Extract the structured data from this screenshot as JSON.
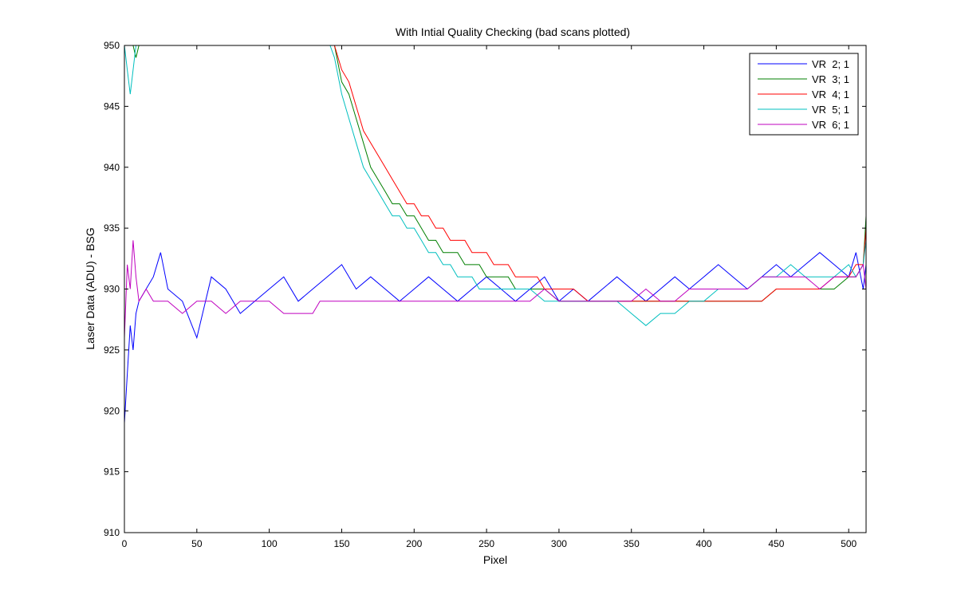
{
  "chart_data": {
    "type": "line",
    "title": "With Intial Quality Checking (bad scans plotted)",
    "xlabel": "Pixel",
    "ylabel": "Laser Data (ADU) - BSG",
    "xlim": [
      0,
      512
    ],
    "ylim": [
      910,
      950
    ],
    "xticks": [
      0,
      50,
      100,
      150,
      200,
      250,
      300,
      350,
      400,
      450,
      500
    ],
    "yticks": [
      910,
      915,
      920,
      925,
      930,
      935,
      940,
      945,
      950
    ],
    "grid": false,
    "legend_position": "top-right",
    "series": [
      {
        "name": "VR  2; 1",
        "color": "#0000ff",
        "x": [
          0,
          2,
          4,
          6,
          8,
          10,
          15,
          20,
          25,
          30,
          40,
          50,
          60,
          70,
          80,
          90,
          100,
          110,
          120,
          130,
          140,
          150,
          160,
          170,
          180,
          190,
          200,
          210,
          220,
          230,
          240,
          250,
          260,
          270,
          280,
          290,
          300,
          310,
          320,
          330,
          340,
          350,
          360,
          370,
          380,
          390,
          400,
          410,
          420,
          430,
          440,
          450,
          460,
          470,
          480,
          490,
          500,
          505,
          510,
          512
        ],
        "values": [
          919,
          923,
          927,
          925,
          928,
          929,
          930,
          931,
          933,
          930,
          929,
          926,
          931,
          930,
          928,
          929,
          930,
          931,
          929,
          930,
          931,
          932,
          930,
          931,
          930,
          929,
          930,
          931,
          930,
          929,
          930,
          931,
          930,
          929,
          930,
          931,
          929,
          930,
          929,
          930,
          931,
          930,
          929,
          930,
          931,
          930,
          931,
          932,
          931,
          930,
          931,
          932,
          931,
          932,
          933,
          932,
          931,
          933,
          930,
          932
        ]
      },
      {
        "name": "VR  3; 1",
        "color": "#007f00",
        "x": [
          2,
          4,
          6,
          8,
          10,
          145,
          150,
          155,
          160,
          165,
          170,
          175,
          180,
          185,
          190,
          195,
          200,
          205,
          210,
          215,
          220,
          225,
          230,
          235,
          240,
          245,
          250,
          255,
          260,
          265,
          270,
          275,
          280,
          285,
          290,
          300,
          310,
          320,
          330,
          340,
          350,
          360,
          370,
          380,
          390,
          400,
          410,
          420,
          430,
          440,
          450,
          460,
          470,
          480,
          490,
          500,
          505,
          510,
          512
        ],
        "values": [
          950,
          951,
          950,
          949,
          950,
          950,
          947,
          946,
          944,
          942,
          940,
          939,
          938,
          937,
          937,
          936,
          936,
          935,
          934,
          934,
          933,
          933,
          933,
          932,
          932,
          932,
          931,
          931,
          931,
          931,
          930,
          930,
          930,
          930,
          930,
          929,
          929,
          929,
          929,
          929,
          929,
          929,
          929,
          929,
          929,
          929,
          929,
          929,
          929,
          929,
          930,
          930,
          930,
          930,
          930,
          931,
          931,
          932,
          936
        ]
      },
      {
        "name": "VR  4; 1",
        "color": "#ff0000",
        "x": [
          145,
          150,
          155,
          160,
          165,
          170,
          175,
          180,
          185,
          190,
          195,
          200,
          205,
          210,
          215,
          220,
          225,
          230,
          235,
          240,
          245,
          250,
          255,
          260,
          265,
          270,
          275,
          280,
          285,
          290,
          300,
          310,
          320,
          330,
          340,
          350,
          360,
          370,
          380,
          390,
          400,
          410,
          420,
          430,
          440,
          450,
          460,
          470,
          480,
          490,
          500,
          505,
          510,
          512
        ],
        "values": [
          950,
          948,
          947,
          945,
          943,
          942,
          941,
          940,
          939,
          938,
          937,
          937,
          936,
          936,
          935,
          935,
          934,
          934,
          934,
          933,
          933,
          933,
          932,
          932,
          932,
          931,
          931,
          931,
          931,
          930,
          930,
          930,
          929,
          929,
          929,
          929,
          929,
          929,
          929,
          929,
          929,
          929,
          929,
          929,
          929,
          930,
          930,
          930,
          930,
          931,
          931,
          932,
          932,
          935
        ]
      },
      {
        "name": "VR  5; 1",
        "color": "#00bfbf",
        "x": [
          0,
          2,
          4,
          6,
          8,
          10,
          142,
          145,
          150,
          155,
          160,
          165,
          170,
          175,
          180,
          185,
          190,
          195,
          200,
          205,
          210,
          215,
          220,
          225,
          230,
          235,
          240,
          245,
          250,
          255,
          260,
          265,
          270,
          275,
          280,
          290,
          300,
          310,
          320,
          330,
          340,
          350,
          360,
          370,
          380,
          390,
          400,
          410,
          420,
          430,
          440,
          450,
          460,
          470,
          480,
          490,
          500,
          505,
          510,
          512
        ],
        "values": [
          950,
          948,
          946,
          948,
          950,
          951,
          950,
          949,
          946,
          944,
          942,
          940,
          939,
          938,
          937,
          936,
          936,
          935,
          935,
          934,
          933,
          933,
          932,
          932,
          931,
          931,
          931,
          930,
          930,
          930,
          930,
          930,
          930,
          930,
          930,
          929,
          929,
          929,
          929,
          929,
          929,
          928,
          927,
          928,
          928,
          929,
          929,
          930,
          930,
          930,
          931,
          931,
          932,
          931,
          931,
          931,
          932,
          931,
          932,
          934
        ]
      },
      {
        "name": "VR  6; 1",
        "color": "#bf00bf",
        "x": [
          0,
          2,
          4,
          6,
          8,
          10,
          15,
          20,
          30,
          40,
          50,
          60,
          70,
          80,
          90,
          100,
          110,
          120,
          130,
          135,
          140,
          150,
          160,
          170,
          180,
          190,
          200,
          210,
          220,
          230,
          240,
          250,
          260,
          270,
          280,
          290,
          300,
          310,
          320,
          330,
          340,
          350,
          360,
          370,
          380,
          390,
          400,
          410,
          420,
          430,
          440,
          450,
          460,
          470,
          480,
          490,
          500,
          505,
          510,
          512
        ],
        "values": [
          926,
          932,
          930,
          934,
          931,
          929,
          930,
          929,
          929,
          928,
          929,
          929,
          928,
          929,
          929,
          929,
          928,
          928,
          928,
          929,
          929,
          929,
          929,
          929,
          929,
          929,
          929,
          929,
          929,
          929,
          929,
          929,
          929,
          929,
          929,
          930,
          929,
          929,
          929,
          929,
          929,
          929,
          930,
          929,
          929,
          930,
          930,
          930,
          930,
          930,
          931,
          931,
          931,
          931,
          930,
          931,
          931,
          931,
          932,
          930
        ]
      }
    ]
  }
}
